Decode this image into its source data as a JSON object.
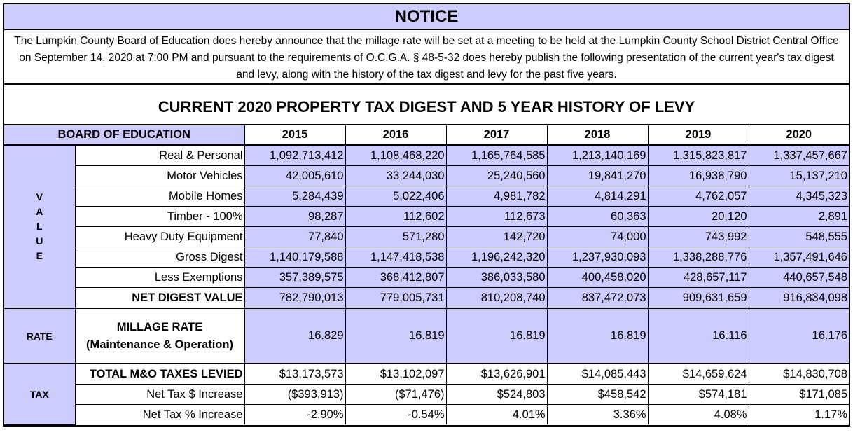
{
  "notice": {
    "title": "NOTICE",
    "body": "The Lumpkin County Board of Education does hereby announce that the millage rate will be set at a meeting to be held at the Lumpkin County School District Central Office on September 14, 2020 at 7:00 PM and pursuant to the requirements of O.C.G.A. § 48-5-32 does hereby publish the following presentation of the current year's tax digest and levy, along with the history of the tax digest and levy for the past five years."
  },
  "digest_title": "CURRENT 2020 PROPERTY TAX DIGEST AND 5 YEAR HISTORY OF LEVY",
  "table": {
    "header_label": "BOARD OF EDUCATION",
    "years": [
      "2015",
      "2016",
      "2017",
      "2018",
      "2019",
      "2020"
    ],
    "value_side": [
      "V",
      "A",
      "L",
      "U",
      "E"
    ],
    "value_rows": [
      {
        "label": "Real & Personal",
        "values": [
          "1,092,713,412",
          "1,108,468,220",
          "1,165,764,585",
          "1,213,140,169",
          "1,315,823,817",
          "1,337,457,667"
        ]
      },
      {
        "label": "Motor Vehicles",
        "values": [
          "42,005,610",
          "33,244,030",
          "25,240,560",
          "19,841,270",
          "16,938,790",
          "15,137,210"
        ]
      },
      {
        "label": "Mobile Homes",
        "values": [
          "5,284,439",
          "5,022,406",
          "4,981,782",
          "4,814,291",
          "4,762,057",
          "4,345,323"
        ]
      },
      {
        "label": "Timber - 100%",
        "values": [
          "98,287",
          "112,602",
          "112,673",
          "60,363",
          "20,120",
          "2,891"
        ]
      },
      {
        "label": "Heavy Duty Equipment",
        "values": [
          "77,840",
          "571,280",
          "142,720",
          "74,000",
          "743,992",
          "548,555"
        ]
      },
      {
        "label": "Gross Digest",
        "values": [
          "1,140,179,588",
          "1,147,418,538",
          "1,196,242,320",
          "1,237,930,093",
          "1,338,288,776",
          "1,357,491,646"
        ]
      },
      {
        "label": "Less Exemptions",
        "values": [
          "357,389,575",
          "368,412,807",
          "386,033,580",
          "400,458,020",
          "428,657,117",
          "440,657,548"
        ]
      },
      {
        "label": "NET DIGEST VALUE",
        "values": [
          "782,790,013",
          "779,005,731",
          "810,208,740",
          "837,472,073",
          "909,631,659",
          "916,834,098"
        ]
      }
    ],
    "rate_side": "RATE",
    "rate_label_1": "MILLAGE RATE",
    "rate_label_2": "(Maintenance & Operation)",
    "rate_values": [
      "16.829",
      "16.819",
      "16.819",
      "16.819",
      "16.116",
      "16.176"
    ],
    "tax_side": "TAX",
    "tax_rows": [
      {
        "label": "TOTAL M&O TAXES LEVIED",
        "values": [
          "$13,173,573",
          "$13,102,097",
          "$13,626,901",
          "$14,085,443",
          "$14,659,624",
          "$14,830,708"
        ]
      },
      {
        "label": "Net Tax $ Increase",
        "values": [
          "($393,913)",
          "($71,476)",
          "$524,803",
          "$458,542",
          "$574,181",
          "$171,085"
        ]
      },
      {
        "label": "Net Tax % Increase",
        "values": [
          "-2.90%",
          "-0.54%",
          "4.01%",
          "3.36%",
          "4.08%",
          "1.17%"
        ]
      }
    ]
  }
}
